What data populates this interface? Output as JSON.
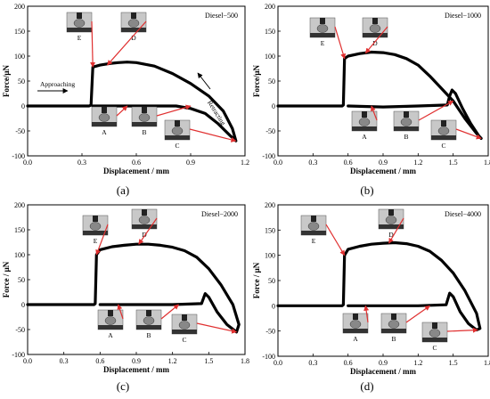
{
  "colors": {
    "curve": "#000000",
    "arrow": "#e03030",
    "frame": "#000000"
  },
  "chart_data": [
    {
      "type": "line",
      "panel": "(a)",
      "tag": "Diesel−500",
      "xlabel": "Displacement / mm",
      "ylabel": "Force/μN",
      "xlim": [
        0.0,
        1.2
      ],
      "ylim": [
        -100,
        200
      ],
      "xticks": [
        "0.0",
        "0.3",
        "0.6",
        "0.9",
        "1.2"
      ],
      "yticks": [
        "-100",
        "-50",
        "0",
        "50",
        "100",
        "150",
        "200"
      ],
      "series": [
        {
          "x": [
            0.0,
            0.34,
            0.35,
            0.36,
            0.4,
            0.45,
            0.5,
            0.55,
            0.6,
            0.7,
            0.8,
            0.9,
            1.0,
            1.08,
            1.13,
            1.15,
            1.12,
            1.05,
            0.98,
            0.9,
            0.82,
            0.75,
            0.55,
            0.36
          ],
          "y": [
            0,
            0,
            2,
            78,
            82,
            85,
            87,
            88,
            87,
            80,
            65,
            45,
            20,
            -10,
            -45,
            -70,
            -60,
            -35,
            -15,
            -5,
            0,
            0,
            0,
            0
          ]
        }
      ],
      "annotations": [
        "Approaching",
        "Retracting",
        "A",
        "B",
        "C",
        "D",
        "E"
      ]
    },
    {
      "type": "line",
      "panel": "(b)",
      "tag": "Diesel−1000",
      "xlabel": "Displacement / mm",
      "ylabel": "Force/μN",
      "xlim": [
        0.0,
        1.8
      ],
      "ylim": [
        -100,
        200
      ],
      "xticks": [
        "0.0",
        "0.3",
        "0.6",
        "0.9",
        "1.2",
        "1.5",
        "1.8"
      ],
      "yticks": [
        "-100",
        "-50",
        "0",
        "50",
        "100",
        "150",
        "200"
      ],
      "series": [
        {
          "x": [
            0.0,
            0.55,
            0.56,
            0.57,
            0.6,
            0.7,
            0.8,
            0.9,
            1.0,
            1.1,
            1.2,
            1.3,
            1.4,
            1.5,
            1.6,
            1.7,
            1.74,
            1.72,
            1.65,
            1.58,
            1.52,
            1.49,
            1.47,
            1.45,
            1.2,
            0.9,
            0.6
          ],
          "y": [
            0,
            0,
            2,
            95,
            100,
            105,
            108,
            107,
            103,
            95,
            82,
            60,
            35,
            10,
            -25,
            -55,
            -65,
            -60,
            -35,
            -5,
            25,
            32,
            20,
            2,
            0,
            -2,
            0
          ]
        }
      ],
      "annotations": [
        "A",
        "B",
        "C",
        "D",
        "E"
      ]
    },
    {
      "type": "line",
      "panel": "(c)",
      "tag": "Diesel−2000",
      "xlabel": "Displacement / mm",
      "ylabel": "Force / μN",
      "xlim": [
        0.0,
        1.8
      ],
      "ylim": [
        -100,
        200
      ],
      "xticks": [
        "0.0",
        "0.3",
        "0.6",
        "0.9",
        "1.2",
        "1.5",
        "1.8"
      ],
      "yticks": [
        "-100",
        "-50",
        "0",
        "50",
        "100",
        "150",
        "200"
      ],
      "series": [
        {
          "x": [
            0.0,
            0.55,
            0.56,
            0.57,
            0.6,
            0.7,
            0.8,
            0.9,
            1.0,
            1.1,
            1.2,
            1.3,
            1.4,
            1.5,
            1.6,
            1.7,
            1.75,
            1.73,
            1.65,
            1.57,
            1.5,
            1.47,
            1.44,
            1.2,
            0.9,
            0.6
          ],
          "y": [
            0,
            0,
            2,
            100,
            110,
            116,
            119,
            121,
            121,
            119,
            115,
            108,
            95,
            72,
            40,
            0,
            -40,
            -55,
            -40,
            -15,
            15,
            22,
            2,
            0,
            0,
            0
          ]
        }
      ],
      "annotations": [
        "A",
        "B",
        "C",
        "D",
        "E"
      ]
    },
    {
      "type": "line",
      "panel": "(d)",
      "tag": "Diesel−4000",
      "xlabel": "Displacement / mm",
      "ylabel": "Force / μN",
      "xlim": [
        0.0,
        1.8
      ],
      "ylim": [
        -100,
        200
      ],
      "xticks": [
        "0.0",
        "0.3",
        "0.6",
        "0.9",
        "1.2",
        "1.5",
        "1.8"
      ],
      "yticks": [
        "-100",
        "-50",
        "0",
        "50",
        "100",
        "150",
        "200"
      ],
      "series": [
        {
          "x": [
            0.0,
            0.55,
            0.56,
            0.57,
            0.6,
            0.7,
            0.8,
            0.9,
            1.0,
            1.1,
            1.2,
            1.3,
            1.4,
            1.5,
            1.6,
            1.7,
            1.73,
            1.7,
            1.63,
            1.56,
            1.5,
            1.47,
            1.44,
            1.2,
            0.9,
            0.6
          ],
          "y": [
            0,
            0,
            2,
            100,
            112,
            118,
            122,
            124,
            125,
            123,
            118,
            108,
            90,
            65,
            30,
            -15,
            -45,
            -48,
            -35,
            -12,
            18,
            25,
            2,
            0,
            0,
            0
          ]
        }
      ],
      "annotations": [
        "A",
        "B",
        "C",
        "D",
        "E"
      ]
    }
  ]
}
